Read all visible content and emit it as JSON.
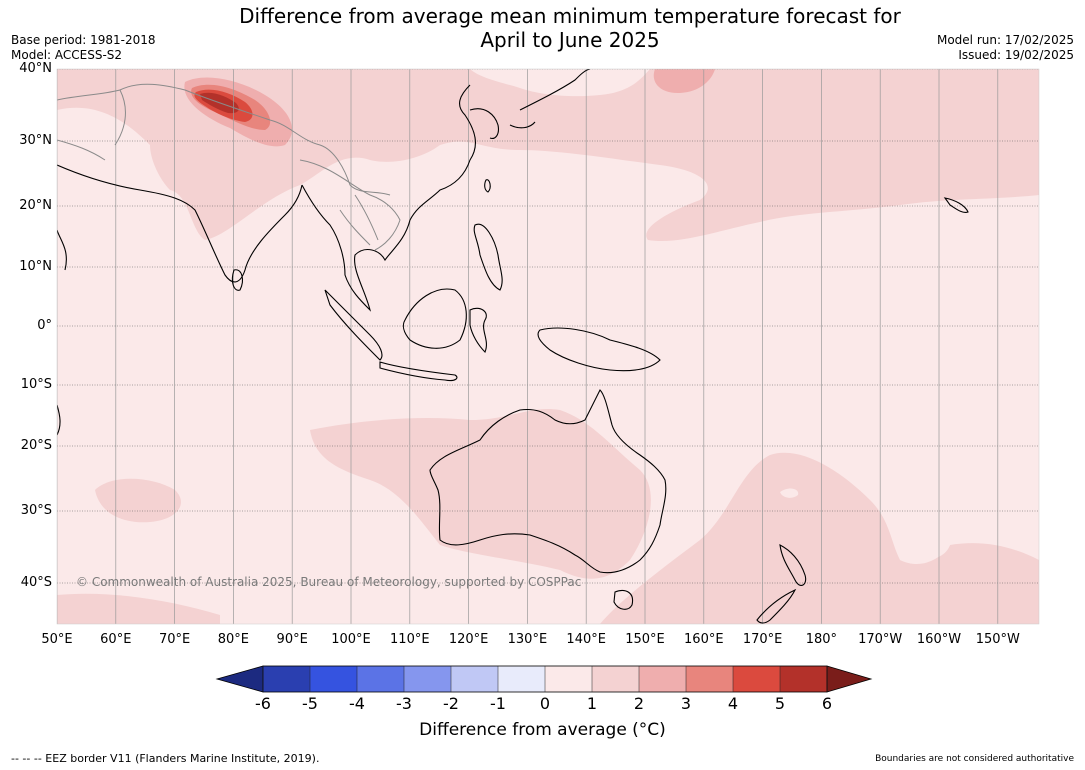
{
  "title": "Difference from average mean minimum temperature forecast for April to June 2025",
  "title_line1": "Difference from average mean minimum temperature forecast for",
  "title_line2": "April to June 2025",
  "base_period": "Base period: 1981-2018",
  "model": "Model: ACCESS-S2",
  "model_run": "Model run: 17/02/2025",
  "issued": "Issued: 19/02/2025",
  "copyright": "© Commonwealth of Australia 2025, Bureau of Meteorology, supported by COSPPac",
  "lat_labels": [
    "40°N",
    "30°N",
    "20°N",
    "10°N",
    "0°",
    "10°S",
    "20°S",
    "30°S",
    "40°S"
  ],
  "lon_labels": [
    "50°E",
    "60°E",
    "70°E",
    "80°E",
    "90°E",
    "100°E",
    "110°E",
    "120°E",
    "130°E",
    "140°E",
    "150°E",
    "160°E",
    "170°E",
    "180°",
    "170°W",
    "160°W",
    "150°W"
  ],
  "colorbar": {
    "title": "Difference from average (°C)",
    "ticks": [
      "-6",
      "-5",
      "-4",
      "-3",
      "-2",
      "-1",
      "0",
      "1",
      "2",
      "3",
      "4",
      "5",
      "6"
    ],
    "colors": [
      "#1c2a80",
      "#2a3fb0",
      "#3553e0",
      "#5b73e6",
      "#8596ee",
      "#c0c8f5",
      "#e8ebfb",
      "#fbe9e9",
      "#f4d2d2",
      "#efaeae",
      "#e8857d",
      "#db4a3e",
      "#b3312a",
      "#7a1d1a"
    ]
  },
  "footer_left": "--  --  -- EEZ border V11 (Flanders Marine Institute, 2019).",
  "footer_right": "Boundaries are not considered authoritative"
}
